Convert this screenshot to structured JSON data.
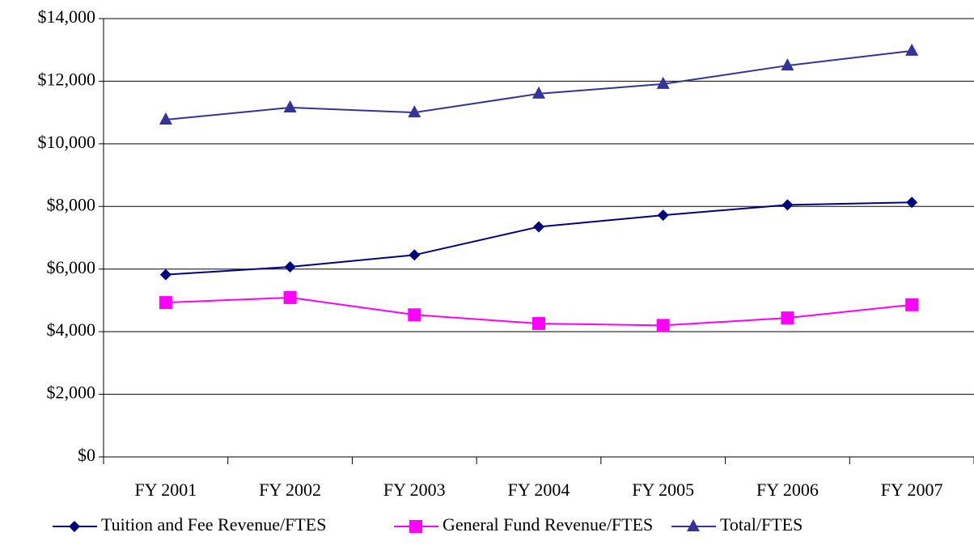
{
  "chart_data": {
    "type": "line",
    "categories": [
      "FY 2001",
      "FY 2002",
      "FY 2003",
      "FY 2004",
      "FY 2005",
      "FY 2006",
      "FY 2007"
    ],
    "series": [
      {
        "name": "Tuition and Fee Revenue/FTES",
        "color": "#000080",
        "marker": "diamond",
        "values": [
          5820,
          6070,
          6450,
          7350,
          7720,
          8050,
          8130
        ]
      },
      {
        "name": "General Fund Revenue/FTES",
        "color": "#ff00ff",
        "marker": "square",
        "values": [
          4930,
          5090,
          4540,
          4260,
          4200,
          4440,
          4860
        ]
      },
      {
        "name": "Total/FTES",
        "color": "#333399",
        "marker": "triangle",
        "values": [
          10770,
          11160,
          11000,
          11600,
          11910,
          12500,
          12970
        ]
      }
    ],
    "ylim": [
      0,
      14000
    ],
    "yticks": [
      {
        "value": 0,
        "label": "$0"
      },
      {
        "value": 2000,
        "label": "$2,000"
      },
      {
        "value": 4000,
        "label": "$4,000"
      },
      {
        "value": 6000,
        "label": "$6,000"
      },
      {
        "value": 8000,
        "label": "$8,000"
      },
      {
        "value": 10000,
        "label": "$10,000"
      },
      {
        "value": 12000,
        "label": "$12,000"
      },
      {
        "value": 14000,
        "label": "$14,000"
      }
    ],
    "grid": true,
    "legend": "bottom"
  }
}
